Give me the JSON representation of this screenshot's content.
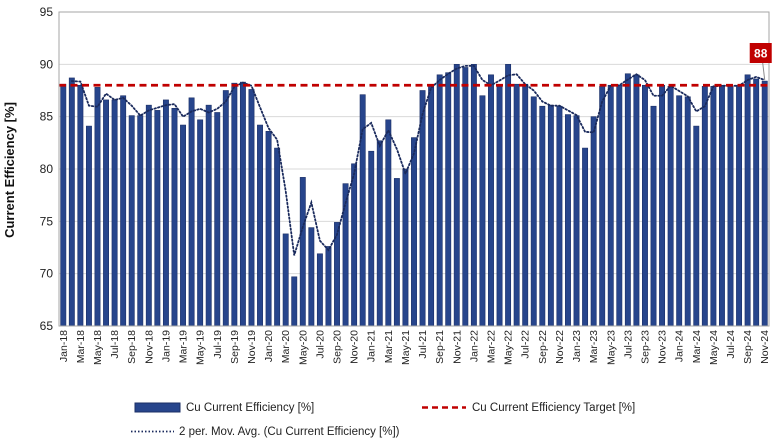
{
  "chart_data": {
    "type": "bar",
    "ylabel": "Current Efficiency [%]",
    "xlabel": "",
    "title": "",
    "ylim": [
      65,
      95
    ],
    "yticks": [
      65,
      70,
      75,
      80,
      85,
      90,
      95
    ],
    "grid": "horizontal",
    "legend_position": "bottom",
    "colors": {
      "bar": "#27458C",
      "bar_edge": "#1B2F66",
      "target": "#C00000",
      "moving_avg": "#1A2A5C",
      "callout": "#C00000",
      "grid": "#D9D9D9"
    },
    "categories": [
      "Jan-18",
      "Feb-18",
      "Mar-18",
      "Apr-18",
      "May-18",
      "Jun-18",
      "Jul-18",
      "Aug-18",
      "Sep-18",
      "Oct-18",
      "Nov-18",
      "Dec-18",
      "Jan-19",
      "Feb-19",
      "Mar-19",
      "Apr-19",
      "May-19",
      "Jun-19",
      "Jul-19",
      "Aug-19",
      "Sep-19",
      "Oct-19",
      "Nov-19",
      "Dec-19",
      "Jan-20",
      "Feb-20",
      "Mar-20",
      "Apr-20",
      "May-20",
      "Jun-20",
      "Jul-20",
      "Aug-20",
      "Sep-20",
      "Oct-20",
      "Nov-20",
      "Dec-20",
      "Jan-21",
      "Feb-21",
      "Mar-21",
      "Apr-21",
      "May-21",
      "Jun-21",
      "Jul-21",
      "Aug-21",
      "Sep-21",
      "Oct-21",
      "Nov-21",
      "Dec-21",
      "Jan-22",
      "Feb-22",
      "Mar-22",
      "Apr-22",
      "May-22",
      "Jun-22",
      "Jul-22",
      "Aug-22",
      "Sep-22",
      "Oct-22",
      "Nov-22",
      "Dec-22",
      "Jan-23",
      "Feb-23",
      "Mar-23",
      "Apr-23",
      "May-23",
      "Jun-23",
      "Jul-23",
      "Aug-23",
      "Sep-23",
      "Oct-23",
      "Nov-23",
      "Dec-23",
      "Jan-24",
      "Feb-24",
      "Mar-24",
      "Apr-24",
      "May-24",
      "Jun-24",
      "Jul-24",
      "Aug-24",
      "Sep-24",
      "Oct-24",
      "Nov-24"
    ],
    "tick_labels": [
      "Jan-18",
      "Mar-18",
      "May-18",
      "Jul-18",
      "Sep-18",
      "Nov-18",
      "Jan-19",
      "Mar-19",
      "May-19",
      "Jul-19",
      "Sep-19",
      "Nov-19",
      "Jan-20",
      "Mar-20",
      "May-20",
      "Jul-20",
      "Sep-20",
      "Nov-20",
      "Jan-21",
      "Mar-21",
      "May-21",
      "Jul-21",
      "Sep-21",
      "Nov-21",
      "Jan-22",
      "Mar-22",
      "May-22",
      "Jul-22",
      "Sep-22",
      "Nov-22",
      "Jan-23",
      "Mar-23",
      "May-23",
      "Jul-23",
      "Sep-23",
      "Nov-23",
      "Jan-24",
      "Mar-24",
      "May-24",
      "Jul-24",
      "Sep-24",
      "Nov-24"
    ],
    "series": [
      {
        "name": "Cu Current Efficiency [%]",
        "kind": "bar",
        "values": [
          88.1,
          88.7,
          88.0,
          84.1,
          87.8,
          86.6,
          86.6,
          87.0,
          85.1,
          85.1,
          86.1,
          85.6,
          86.6,
          85.8,
          84.2,
          86.8,
          84.7,
          86.1,
          85.4,
          87.5,
          88.2,
          88.3,
          87.6,
          84.2,
          83.6,
          82.0,
          73.8,
          69.7,
          79.2,
          74.4,
          71.9,
          72.6,
          74.9,
          78.6,
          80.5,
          87.1,
          81.7,
          82.7,
          84.7,
          79.1,
          80.0,
          83.0,
          87.5,
          88.0,
          89.0,
          89.2,
          90.0,
          89.7,
          90.0,
          87.0,
          89.0,
          87.9,
          90.0,
          88.1,
          88.1,
          86.9,
          86.0,
          86.1,
          86.0,
          85.2,
          85.1,
          82.0,
          85.0,
          87.9,
          88.0,
          88.0,
          89.1,
          89.0,
          88.0,
          86.0,
          88.0,
          87.9,
          87.0,
          86.9,
          84.1,
          87.9,
          87.9,
          88.0,
          87.9,
          88.0,
          89.0,
          88.6,
          88.4
        ]
      },
      {
        "name": "Cu Current Efficiency Target [%]",
        "kind": "line",
        "style": "dashed",
        "value": 88
      },
      {
        "name": "2 per. Mov. Avg. (Cu Current Efficiency [%])",
        "kind": "line",
        "style": "dotted",
        "period": 2
      }
    ],
    "annotation": {
      "label": "88",
      "category": "Nov-24"
    }
  }
}
